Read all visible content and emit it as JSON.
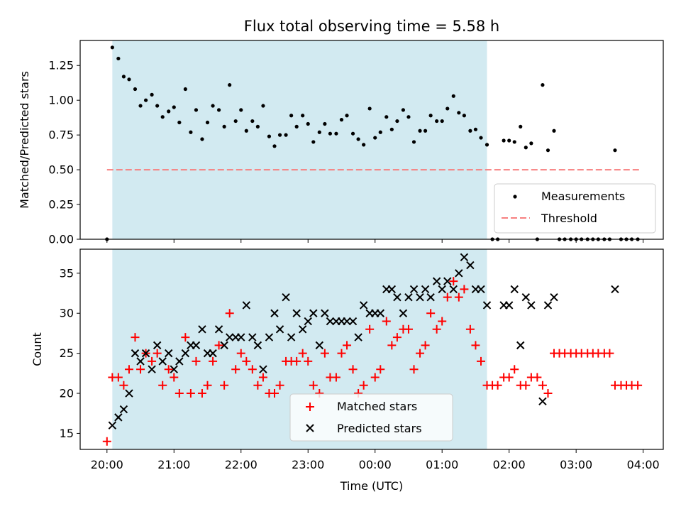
{
  "figure": {
    "title": "Flux total observing time = 5.58 h"
  },
  "chart_data": [
    {
      "type": "scatter",
      "ylabel": "Matched/Predicted stars",
      "xlim": [
        19.6,
        28.3
      ],
      "ylim": [
        0.0,
        1.43
      ],
      "x_ticks": [
        "20:00",
        "21:00",
        "22:00",
        "23:00",
        "00:00",
        "01:00",
        "02:00",
        "03:00",
        "04:00"
      ],
      "x_tick_hours": [
        20,
        21,
        22,
        23,
        24,
        25,
        26,
        27,
        28
      ],
      "y_ticks": [
        "0.00",
        "0.25",
        "0.50",
        "0.75",
        "1.00",
        "1.25"
      ],
      "y_tick_values": [
        0,
        0.25,
        0.5,
        0.75,
        1.0,
        1.25
      ],
      "shaded_interval": [
        20.08,
        25.67
      ],
      "legend": {
        "position": "lower right",
        "entries": [
          "Measurements",
          "Threshold"
        ]
      },
      "threshold": {
        "name": "Threshold",
        "y": 0.5,
        "x": [
          20.0,
          27.95
        ],
        "color": "#f77f7f"
      },
      "series": [
        {
          "name": "Measurements",
          "color": "#000000",
          "x": [
            20.0,
            20.08,
            20.17,
            20.25,
            20.33,
            20.42,
            20.5,
            20.58,
            20.67,
            20.75,
            20.83,
            20.92,
            21.0,
            21.08,
            21.17,
            21.25,
            21.33,
            21.42,
            21.5,
            21.58,
            21.67,
            21.75,
            21.83,
            21.92,
            22.0,
            22.08,
            22.17,
            22.25,
            22.33,
            22.42,
            22.5,
            22.58,
            22.67,
            22.75,
            22.83,
            22.92,
            23.0,
            23.08,
            23.17,
            23.25,
            23.33,
            23.42,
            23.5,
            23.58,
            23.67,
            23.75,
            23.83,
            23.92,
            24.0,
            24.08,
            24.17,
            24.25,
            24.33,
            24.42,
            24.5,
            24.58,
            24.67,
            24.75,
            24.83,
            24.92,
            25.0,
            25.08,
            25.17,
            25.25,
            25.33,
            25.42,
            25.5,
            25.58,
            25.67,
            25.75,
            25.83,
            25.92,
            26.0,
            26.08,
            26.17,
            26.25,
            26.33,
            26.42,
            26.5,
            26.58,
            26.67,
            26.75,
            26.83,
            26.92,
            27.0,
            27.08,
            27.17,
            27.25,
            27.33,
            27.42,
            27.5,
            27.58,
            27.67,
            27.75,
            27.83,
            27.92
          ],
          "y": [
            0.0,
            1.38,
            1.3,
            1.17,
            1.15,
            1.08,
            0.96,
            1.0,
            1.04,
            0.96,
            0.88,
            0.92,
            0.95,
            0.84,
            1.08,
            0.77,
            0.93,
            0.72,
            0.84,
            0.96,
            0.93,
            0.81,
            1.11,
            0.85,
            0.93,
            0.78,
            0.85,
            0.81,
            0.96,
            0.74,
            0.67,
            0.75,
            0.75,
            0.89,
            0.81,
            0.89,
            0.83,
            0.7,
            0.77,
            0.83,
            0.76,
            0.76,
            0.86,
            0.89,
            0.76,
            0.72,
            0.68,
            0.94,
            0.73,
            0.77,
            0.88,
            0.79,
            0.85,
            0.93,
            0.88,
            0.7,
            0.78,
            0.78,
            0.89,
            0.85,
            0.85,
            0.94,
            1.03,
            0.91,
            0.89,
            0.78,
            0.79,
            0.73,
            0.68,
            0.0,
            0.0,
            0.71,
            0.71,
            0.7,
            0.81,
            0.66,
            0.69,
            0.0,
            1.11,
            0.64,
            0.78,
            0.0,
            0.0,
            0.0,
            0.0,
            0.0,
            0.0,
            0.0,
            0.0,
            0.0,
            0.0,
            0.64,
            0.0,
            0.0,
            0.0,
            0.0
          ]
        }
      ]
    },
    {
      "type": "scatter",
      "xlabel": "Time (UTC)",
      "ylabel": "Count",
      "xlim": [
        19.6,
        28.3
      ],
      "ylim": [
        13,
        38
      ],
      "x_ticks": [
        "20:00",
        "21:00",
        "22:00",
        "23:00",
        "00:00",
        "01:00",
        "02:00",
        "03:00",
        "04:00"
      ],
      "x_tick_hours": [
        20,
        21,
        22,
        23,
        24,
        25,
        26,
        27,
        28
      ],
      "y_ticks": [
        "15",
        "20",
        "25",
        "30",
        "35"
      ],
      "y_tick_values": [
        15,
        20,
        25,
        30,
        35
      ],
      "shaded_interval": [
        20.08,
        25.67
      ],
      "legend": {
        "position": "lower center",
        "entries": [
          "Matched stars",
          "Predicted stars"
        ]
      },
      "series": [
        {
          "name": "Matched stars",
          "marker": "+",
          "color": "#ff0000",
          "x": [
            20.0,
            20.08,
            20.17,
            20.25,
            20.33,
            20.42,
            20.5,
            20.58,
            20.67,
            20.75,
            20.83,
            20.92,
            21.0,
            21.08,
            21.17,
            21.25,
            21.33,
            21.42,
            21.5,
            21.58,
            21.67,
            21.75,
            21.83,
            21.92,
            22.0,
            22.08,
            22.17,
            22.25,
            22.33,
            22.42,
            22.5,
            22.58,
            22.67,
            22.75,
            22.83,
            22.92,
            23.0,
            23.08,
            23.17,
            23.25,
            23.33,
            23.42,
            23.5,
            23.58,
            23.67,
            23.75,
            23.83,
            23.92,
            24.0,
            24.08,
            24.17,
            24.25,
            24.33,
            24.42,
            24.5,
            24.58,
            24.67,
            24.75,
            24.83,
            24.92,
            25.0,
            25.08,
            25.17,
            25.25,
            25.33,
            25.42,
            25.5,
            25.58,
            25.67,
            25.75,
            25.83,
            25.92,
            26.0,
            26.08,
            26.17,
            26.25,
            26.33,
            26.42,
            26.5,
            26.58,
            26.67,
            26.75,
            26.83,
            26.92,
            27.0,
            27.08,
            27.17,
            27.25,
            27.33,
            27.42,
            27.5,
            27.58,
            27.67,
            27.75,
            27.83,
            27.92
          ],
          "y": [
            14,
            22,
            22,
            21,
            23,
            27,
            23,
            25,
            24,
            25,
            21,
            23,
            22,
            20,
            27,
            20,
            24,
            20,
            21,
            24,
            26,
            21,
            30,
            23,
            25,
            24,
            23,
            21,
            22,
            20,
            20,
            21,
            24,
            24,
            24,
            25,
            24,
            21,
            20,
            25,
            22,
            22,
            25,
            26,
            23,
            20,
            21,
            28,
            22,
            23,
            29,
            26,
            27,
            28,
            28,
            23,
            25,
            26,
            30,
            28,
            29,
            32,
            34,
            32,
            33,
            28,
            26,
            24,
            21,
            21,
            21,
            22,
            22,
            23,
            21,
            21,
            22,
            22,
            21,
            20,
            25,
            25,
            25,
            25,
            25,
            25,
            25,
            25,
            25,
            25,
            25,
            21,
            21,
            21,
            21,
            21
          ]
        },
        {
          "name": "Predicted stars",
          "marker": "x",
          "color": "#000000",
          "x": [
            20.08,
            20.17,
            20.25,
            20.33,
            20.42,
            20.5,
            20.58,
            20.67,
            20.75,
            20.83,
            20.92,
            21.0,
            21.08,
            21.17,
            21.25,
            21.33,
            21.42,
            21.5,
            21.58,
            21.67,
            21.75,
            21.83,
            21.92,
            22.0,
            22.08,
            22.17,
            22.25,
            22.33,
            22.42,
            22.5,
            22.58,
            22.67,
            22.75,
            22.83,
            22.92,
            23.0,
            23.08,
            23.17,
            23.25,
            23.33,
            23.42,
            23.5,
            23.58,
            23.67,
            23.75,
            23.83,
            23.92,
            24.0,
            24.08,
            24.17,
            24.25,
            24.33,
            24.42,
            24.5,
            24.58,
            24.67,
            24.75,
            24.83,
            24.92,
            25.0,
            25.08,
            25.17,
            25.25,
            25.33,
            25.42,
            25.5,
            25.58,
            25.67,
            25.92,
            26.0,
            26.08,
            26.17,
            26.25,
            26.33,
            26.5,
            26.58,
            26.67,
            27.58
          ],
          "y": [
            16,
            17,
            18,
            20,
            25,
            24,
            25,
            23,
            26,
            24,
            25,
            23,
            24,
            25,
            26,
            26,
            28,
            25,
            25,
            28,
            26,
            27,
            27,
            27,
            31,
            27,
            26,
            23,
            27,
            30,
            28,
            32,
            27,
            30,
            28,
            29,
            30,
            26,
            30,
            29,
            29,
            29,
            29,
            29,
            27,
            31,
            30,
            30,
            30,
            33,
            33,
            32,
            30,
            32,
            33,
            32,
            33,
            32,
            34,
            33,
            34,
            33,
            35,
            37,
            36,
            33,
            33,
            31,
            31,
            31,
            33,
            26,
            32,
            31,
            19,
            31,
            32,
            33
          ]
        }
      ]
    }
  ]
}
